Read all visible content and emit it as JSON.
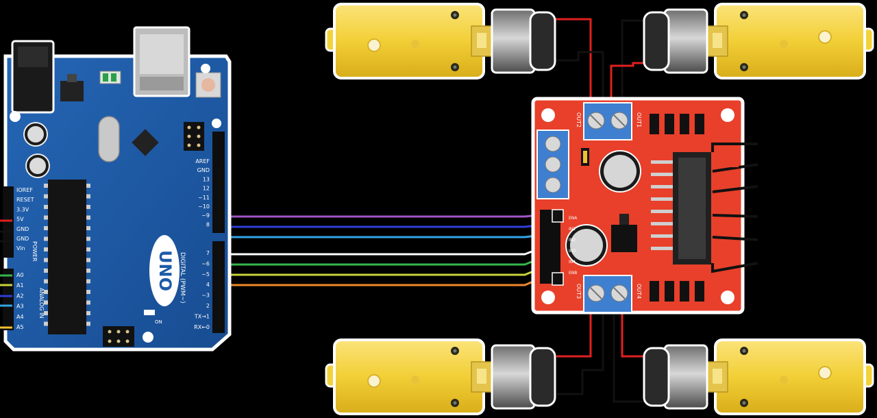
{
  "arduino": {
    "brand": "UNO",
    "power_pins": [
      "IOREF",
      "RESET",
      "3.3V",
      "5V",
      "GND",
      "GND",
      "Vin"
    ],
    "power_section": "POWER",
    "analog_pins": [
      "A0",
      "A1",
      "A2",
      "A3",
      "A4",
      "A5"
    ],
    "analog_section": "ANALOG IN",
    "digital_top": [
      "AREF",
      "GND",
      "13",
      "12",
      "~11",
      "~10",
      "~9",
      "8"
    ],
    "digital_bottom": [
      "7",
      "~6",
      "~5",
      "4",
      "~3",
      "2",
      "TX→1",
      "RX←0"
    ],
    "digital_section": "DIGITAL (PWM~)",
    "on_label": "ON"
  },
  "driver": {
    "out1": "OUT1",
    "out2": "OUT2",
    "out3": "OUT3",
    "out4": "OUT4",
    "pins": [
      "ENA",
      "IN1",
      "IN2",
      "IN3",
      "IN4",
      "ENB"
    ]
  },
  "wires": [
    {
      "id": "pin10",
      "color": "#a255c8"
    },
    {
      "id": "pin9",
      "color": "#2f3fd6"
    },
    {
      "id": "pin8",
      "color": "#33a5e8"
    },
    {
      "id": "pin7",
      "color": "#ffffff"
    },
    {
      "id": "pin6",
      "color": "#35b84a"
    },
    {
      "id": "pin5",
      "color": "#c8d438"
    },
    {
      "id": "pin4",
      "color": "#f08a2a"
    }
  ],
  "colors": {
    "arduino_board": "#1d5ba8",
    "driver_board": "#e8402a",
    "motor_gear": "#f2d23a",
    "motor_can": "#8d8d8d",
    "red_wire": "#e02020",
    "black_wire": "#111111"
  }
}
